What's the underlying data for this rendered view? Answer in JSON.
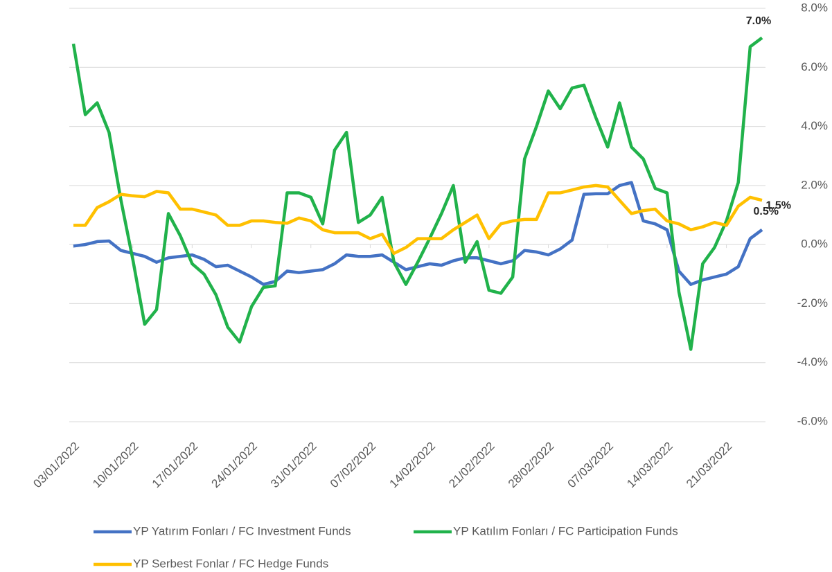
{
  "chart_data": {
    "type": "line",
    "categories": [
      "03/01/2022",
      null,
      null,
      null,
      null,
      "10/01/2022",
      null,
      null,
      null,
      null,
      "17/01/2022",
      null,
      null,
      null,
      null,
      "24/01/2022",
      null,
      null,
      null,
      null,
      "31/01/2022",
      null,
      null,
      null,
      null,
      "07/02/2022",
      null,
      null,
      null,
      null,
      "14/02/2022",
      null,
      null,
      null,
      null,
      "21/02/2022",
      null,
      null,
      null,
      null,
      "28/02/2022",
      null,
      null,
      null,
      null,
      "07/03/2022",
      null,
      null,
      null,
      null,
      "14/03/2022",
      null,
      null,
      null,
      null,
      "21/03/2022",
      null,
      null,
      null
    ],
    "series": [
      {
        "name": "YP Yatırım Fonları / FC Investment Funds",
        "color": "#4472c4",
        "values": [
          -0.05,
          0.0,
          0.1,
          0.12,
          -0.2,
          -0.3,
          -0.4,
          -0.6,
          -0.45,
          -0.4,
          -0.35,
          -0.5,
          -0.75,
          -0.7,
          -0.9,
          -1.1,
          -1.35,
          -1.25,
          -0.9,
          -0.95,
          -0.9,
          -0.85,
          -0.65,
          -0.35,
          -0.4,
          -0.4,
          -0.35,
          -0.6,
          -0.85,
          -0.75,
          -0.65,
          -0.7,
          -0.55,
          -0.45,
          -0.45,
          -0.55,
          -0.65,
          -0.55,
          -0.2,
          -0.25,
          -0.35,
          -0.15,
          0.15,
          1.7,
          1.72,
          1.72,
          2.0,
          2.1,
          0.8,
          0.7,
          0.5,
          -0.9,
          -1.35,
          -1.2,
          -1.1,
          -1.0,
          -0.75,
          0.2,
          0.5
        ],
        "value_labels": {
          "58": "0.5%"
        }
      },
      {
        "name": "YP Katılım Fonları / FC Participation Funds",
        "color": "#21b24b",
        "values": [
          6.8,
          4.4,
          4.8,
          3.8,
          1.5,
          -0.5,
          -2.7,
          -2.2,
          1.05,
          0.3,
          -0.65,
          -1.0,
          -1.7,
          -2.8,
          -3.3,
          -2.1,
          -1.45,
          -1.4,
          1.75,
          1.75,
          1.6,
          0.7,
          3.2,
          3.8,
          0.75,
          1.0,
          1.6,
          -0.6,
          -1.35,
          -0.6,
          0.2,
          1.05,
          2.0,
          -0.6,
          0.1,
          -1.55,
          -1.65,
          -1.1,
          2.9,
          4.0,
          5.2,
          4.6,
          5.3,
          5.4,
          4.3,
          3.3,
          4.8,
          3.3,
          2.9,
          1.9,
          1.75,
          -1.6,
          -3.55,
          -0.65,
          -0.1,
          0.8,
          2.1,
          6.7,
          7.0
        ],
        "value_labels": {
          "58": "7.0%"
        }
      },
      {
        "name": "YP Serbest Fonlar / FC Hedge Funds",
        "color": "#ffc000",
        "values": [
          0.65,
          0.65,
          1.25,
          1.45,
          1.7,
          1.65,
          1.62,
          1.8,
          1.75,
          1.2,
          1.2,
          1.1,
          1.0,
          0.65,
          0.65,
          0.8,
          0.8,
          0.75,
          0.72,
          0.9,
          0.8,
          0.5,
          0.4,
          0.4,
          0.4,
          0.2,
          0.35,
          -0.3,
          -0.1,
          0.2,
          0.2,
          0.2,
          0.5,
          0.75,
          1.0,
          0.2,
          0.7,
          0.8,
          0.85,
          0.85,
          1.75,
          1.75,
          1.85,
          1.95,
          2.0,
          1.95,
          1.5,
          1.05,
          1.15,
          1.2,
          0.8,
          0.7,
          0.5,
          0.6,
          0.75,
          0.65,
          1.3,
          1.6,
          1.5
        ],
        "value_labels": {
          "58": "1.5%"
        }
      }
    ],
    "ylim": [
      -6,
      8
    ],
    "yticks": [
      {
        "value": -6,
        "label": "-6.0%"
      },
      {
        "value": -4,
        "label": "-4.0%"
      },
      {
        "value": -2,
        "label": "-2.0%"
      },
      {
        "value": 0,
        "label": "0.0%"
      },
      {
        "value": 2,
        "label": "2.0%"
      },
      {
        "value": 4,
        "label": "4.0%"
      },
      {
        "value": 6,
        "label": "6.0%"
      },
      {
        "value": 8,
        "label": "8.0%"
      }
    ],
    "grid": true
  }
}
